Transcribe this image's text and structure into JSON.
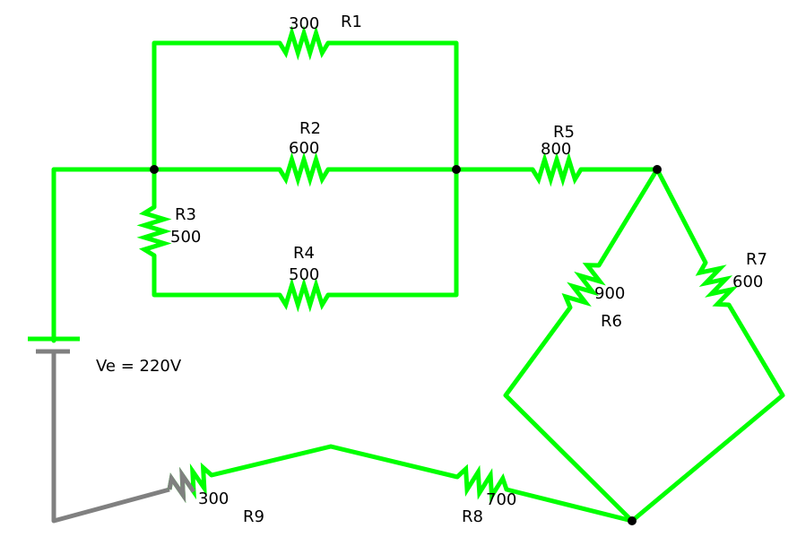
{
  "colors": {
    "wire": "#00ff00",
    "wire_grounded": "#808080",
    "node": "#000000",
    "text": "#000000",
    "background": "#ffffff"
  },
  "source": {
    "label": "Ve = 220V"
  },
  "resistors": [
    {
      "name": "R1",
      "value": "300"
    },
    {
      "name": "R2",
      "value": "600"
    },
    {
      "name": "R3",
      "value": "500"
    },
    {
      "name": "R4",
      "value": "500"
    },
    {
      "name": "R5",
      "value": "800"
    },
    {
      "name": "R6",
      "value": "900"
    },
    {
      "name": "R7",
      "value": "600"
    },
    {
      "name": "R8",
      "value": "700"
    },
    {
      "name": "R9",
      "value": "300"
    }
  ]
}
